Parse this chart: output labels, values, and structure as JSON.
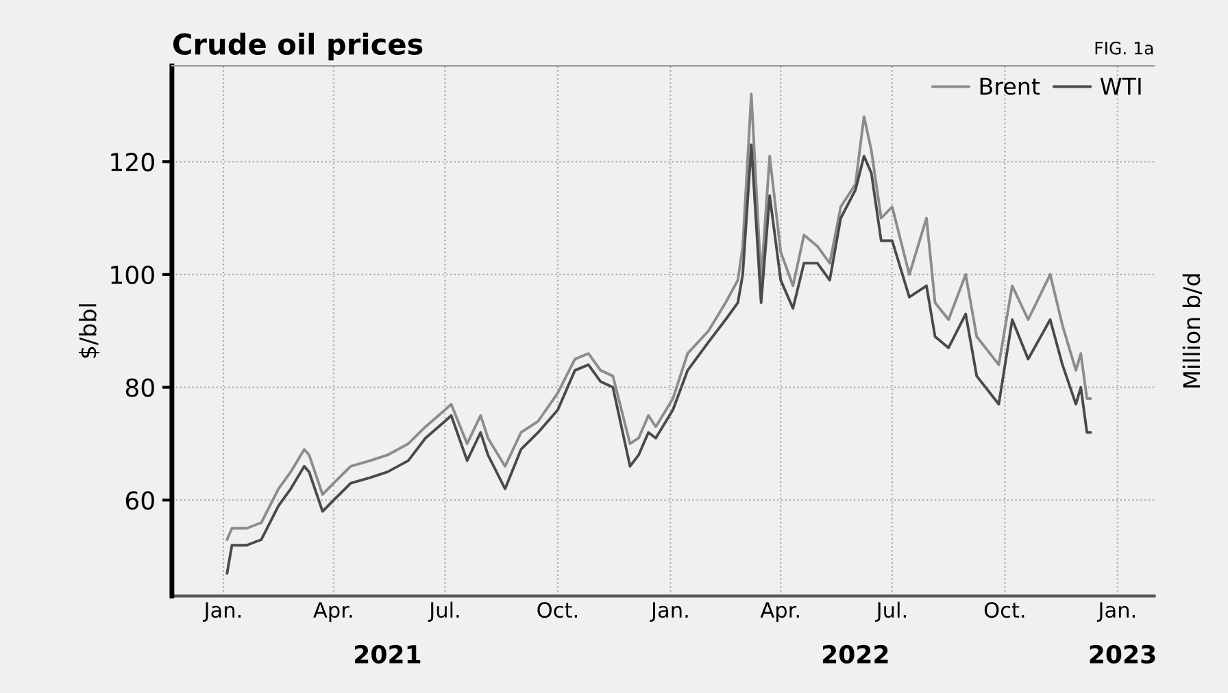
{
  "chart_data": {
    "type": "line",
    "title": "Crude oil prices",
    "ylabel": "$/bbl",
    "y2label": "Million b/d",
    "annotations": [
      "FIG. 1a"
    ],
    "xlim": [
      "2020-11-20",
      "2023-01-31"
    ],
    "ylim": [
      43,
      137
    ],
    "yticks": [
      60,
      80,
      100,
      120
    ],
    "xticks": [
      {
        "value": "2021-01-01",
        "label": "Jan."
      },
      {
        "value": "2021-04-01",
        "label": "Apr."
      },
      {
        "value": "2021-07-01",
        "label": "Jul."
      },
      {
        "value": "2021-10-01",
        "label": "Oct."
      },
      {
        "value": "2022-01-01",
        "label": "Jan."
      },
      {
        "value": "2022-04-01",
        "label": "Apr."
      },
      {
        "value": "2022-07-01",
        "label": "Jul."
      },
      {
        "value": "2022-10-01",
        "label": "Oct."
      },
      {
        "value": "2023-01-01",
        "label": "Jan."
      }
    ],
    "x2lim": [
      "2020-11-20",
      "2023-01-31"
    ],
    "x2ticks": [
      {
        "value": "2021-05-15",
        "label": "2021"
      },
      {
        "value": "2022-06-01",
        "label": "2022"
      },
      {
        "value": "2023-01-05",
        "label": "2023"
      }
    ],
    "grid": true,
    "legend": "top right",
    "line_style": "solid",
    "x": [
      "2021-01-04",
      "2021-01-08",
      "2021-01-20",
      "2021-02-01",
      "2021-02-15",
      "2021-02-25",
      "2021-03-08",
      "2021-03-12",
      "2021-03-23",
      "2021-04-01",
      "2021-04-15",
      "2021-05-01",
      "2021-05-15",
      "2021-06-01",
      "2021-06-15",
      "2021-07-01",
      "2021-07-06",
      "2021-07-19",
      "2021-07-30",
      "2021-08-05",
      "2021-08-19",
      "2021-09-01",
      "2021-09-15",
      "2021-10-01",
      "2021-10-15",
      "2021-10-26",
      "2021-11-05",
      "2021-11-15",
      "2021-11-29",
      "2021-12-06",
      "2021-12-14",
      "2021-12-20",
      "2022-01-03",
      "2022-01-15",
      "2022-02-01",
      "2022-02-15",
      "2022-02-25",
      "2022-03-01",
      "2022-03-08",
      "2022-03-16",
      "2022-03-23",
      "2022-04-01",
      "2022-04-11",
      "2022-04-20",
      "2022-05-01",
      "2022-05-11",
      "2022-05-20",
      "2022-06-01",
      "2022-06-08",
      "2022-06-14",
      "2022-06-22",
      "2022-07-01",
      "2022-07-15",
      "2022-07-29",
      "2022-08-05",
      "2022-08-16",
      "2022-08-30",
      "2022-09-08",
      "2022-09-26",
      "2022-10-07",
      "2022-10-20",
      "2022-11-07",
      "2022-11-17",
      "2022-11-28",
      "2022-12-02",
      "2022-12-07",
      "2022-12-10"
    ],
    "series": [
      {
        "name": "Brent",
        "color": "#8c8c8c",
        "values": [
          53,
          55,
          55,
          56,
          62,
          65,
          69,
          68,
          61,
          63,
          66,
          67,
          68,
          70,
          73,
          76,
          77,
          70,
          75,
          71,
          66,
          72,
          74,
          79,
          85,
          86,
          83,
          82,
          70,
          71,
          75,
          73,
          78,
          86,
          90,
          95,
          99,
          105,
          132,
          99,
          121,
          104,
          98,
          107,
          105,
          102,
          112,
          116,
          128,
          122,
          110,
          112,
          100,
          110,
          95,
          92,
          100,
          89,
          84,
          98,
          92,
          100,
          91,
          83,
          86,
          78,
          78
        ]
      },
      {
        "name": "WTI",
        "color": "#4a4a4a",
        "values": [
          47,
          52,
          52,
          53,
          59,
          62,
          66,
          65,
          58,
          60,
          63,
          64,
          65,
          67,
          71,
          74,
          75,
          67,
          72,
          68,
          62,
          69,
          72,
          76,
          83,
          84,
          81,
          80,
          66,
          68,
          72,
          71,
          76,
          83,
          88,
          92,
          95,
          100,
          123,
          95,
          114,
          99,
          94,
          102,
          102,
          99,
          110,
          115,
          121,
          118,
          106,
          106,
          96,
          98,
          89,
          87,
          93,
          82,
          77,
          92,
          85,
          92,
          84,
          77,
          80,
          72,
          72
        ]
      }
    ]
  }
}
